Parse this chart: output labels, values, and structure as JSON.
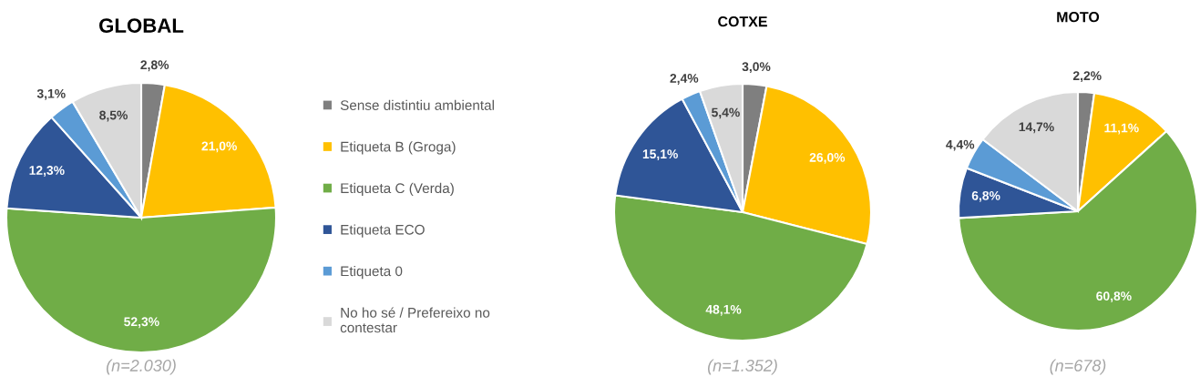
{
  "chart_data": [
    {
      "type": "pie",
      "title": "GLOBAL",
      "categories": [
        "Sense distintiu ambiental",
        "Etiqueta B (Groga)",
        "Etiqueta C (Verda)",
        "Etiqueta ECO",
        "Etiqueta 0",
        "No ho sé / Prefereixo no contestar"
      ],
      "values": [
        2.8,
        21.0,
        52.3,
        12.3,
        3.1,
        8.5
      ],
      "colors": [
        "#7f7f7f",
        "#ffc000",
        "#70ad47",
        "#2f5597",
        "#5b9bd5",
        "#d9d9d9"
      ],
      "value_labels": [
        "2,8%",
        "21,0%",
        "52,3%",
        "12,3%",
        "3,1%",
        "8,5%"
      ],
      "legend": "right",
      "annotations": [
        "(n=2.030)"
      ]
    },
    {
      "type": "pie",
      "title": "COTXE",
      "categories": [
        null,
        null,
        null,
        null,
        null,
        null
      ],
      "values": [
        3.0,
        26.0,
        48.1,
        15.1,
        2.4,
        5.4
      ],
      "colors": [
        "#7f7f7f",
        "#ffc000",
        "#70ad47",
        "#2f5597",
        "#5b9bd5",
        "#d9d9d9"
      ],
      "value_labels": [
        "3,0%",
        "26,0%",
        "48,1%",
        "15,1%",
        "2,4%",
        "5,4%"
      ],
      "annotations": [
        "(n=1.352)"
      ]
    },
    {
      "type": "pie",
      "title": "MOTO",
      "categories": [
        null,
        null,
        null,
        null,
        null,
        null
      ],
      "values": [
        2.2,
        11.1,
        60.8,
        6.8,
        4.4,
        14.7
      ],
      "colors": [
        "#7f7f7f",
        "#ffc000",
        "#70ad47",
        "#2f5597",
        "#5b9bd5",
        "#d9d9d9"
      ],
      "value_labels": [
        "2,2%",
        "11,1%",
        "60,8%",
        "6,8%",
        "4,4%",
        "14,7%"
      ],
      "annotations": [
        "(n=678)"
      ]
    }
  ]
}
